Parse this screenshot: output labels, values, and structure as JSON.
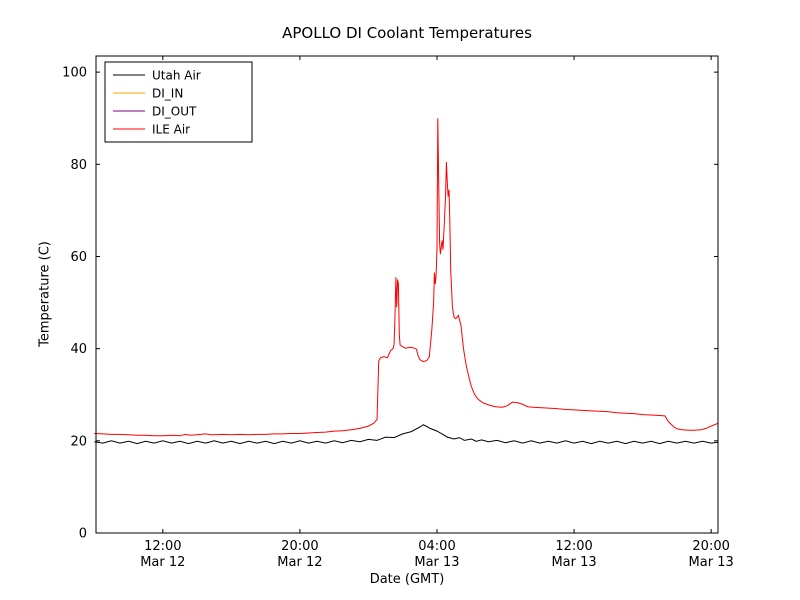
{
  "chart_data": {
    "type": "line",
    "title": "APOLLO DI Coolant Temperatures",
    "xlabel": "Date (GMT)",
    "ylabel": "Temperature (C)",
    "x_unit": "hours since Mar 12 00:00 GMT",
    "xlim": [
      8.1,
      44.4
    ],
    "ylim": [
      0,
      103.5
    ],
    "yticks": [
      0,
      20,
      40,
      60,
      80,
      100
    ],
    "xticks": [
      {
        "x": 12,
        "time": "12:00",
        "date": "Mar 12"
      },
      {
        "x": 20,
        "time": "20:00",
        "date": "Mar 12"
      },
      {
        "x": 28,
        "time": "04:00",
        "date": "Mar 13"
      },
      {
        "x": 36,
        "time": "12:00",
        "date": "Mar 13"
      },
      {
        "x": 44,
        "time": "20:00",
        "date": "Mar 13"
      }
    ],
    "grid": false,
    "legend_position": "upper left",
    "series": [
      {
        "name": "Utah Air",
        "color": "#000000",
        "points": [
          [
            8.0,
            19.8
          ],
          [
            8.5,
            19.5
          ],
          [
            9.0,
            20.0
          ],
          [
            9.5,
            19.5
          ],
          [
            10.0,
            19.9
          ],
          [
            10.5,
            19.4
          ],
          [
            11.0,
            19.9
          ],
          [
            11.5,
            19.5
          ],
          [
            12.0,
            20.0
          ],
          [
            12.5,
            19.5
          ],
          [
            13.0,
            19.9
          ],
          [
            13.5,
            19.4
          ],
          [
            14.0,
            19.9
          ],
          [
            14.5,
            19.5
          ],
          [
            15.0,
            20.0
          ],
          [
            15.5,
            19.5
          ],
          [
            16.0,
            19.9
          ],
          [
            16.5,
            19.4
          ],
          [
            17.0,
            19.9
          ],
          [
            17.5,
            19.5
          ],
          [
            18.0,
            19.9
          ],
          [
            18.5,
            19.4
          ],
          [
            19.0,
            19.9
          ],
          [
            19.5,
            19.5
          ],
          [
            20.0,
            20.0
          ],
          [
            20.5,
            19.5
          ],
          [
            21.0,
            19.9
          ],
          [
            21.5,
            19.5
          ],
          [
            22.0,
            20.0
          ],
          [
            22.5,
            19.6
          ],
          [
            23.0,
            20.1
          ],
          [
            23.5,
            19.8
          ],
          [
            24.0,
            20.3
          ],
          [
            24.5,
            20.1
          ],
          [
            25.0,
            20.8
          ],
          [
            25.5,
            20.7
          ],
          [
            26.0,
            21.5
          ],
          [
            26.5,
            22.0
          ],
          [
            27.0,
            23.0
          ],
          [
            27.2,
            23.5
          ],
          [
            27.4,
            23.1
          ],
          [
            27.6,
            22.7
          ],
          [
            28.0,
            22.1
          ],
          [
            28.3,
            21.5
          ],
          [
            28.6,
            20.8
          ],
          [
            29.0,
            20.4
          ],
          [
            29.3,
            20.7
          ],
          [
            29.6,
            20.1
          ],
          [
            30.0,
            20.4
          ],
          [
            30.3,
            19.9
          ],
          [
            30.6,
            20.2
          ],
          [
            31.0,
            19.8
          ],
          [
            31.5,
            20.1
          ],
          [
            32.0,
            19.6
          ],
          [
            32.5,
            20.0
          ],
          [
            33.0,
            19.5
          ],
          [
            33.5,
            20.0
          ],
          [
            34.0,
            19.5
          ],
          [
            34.5,
            19.9
          ],
          [
            35.0,
            19.5
          ],
          [
            35.5,
            20.0
          ],
          [
            36.0,
            19.5
          ],
          [
            36.5,
            19.9
          ],
          [
            37.0,
            19.4
          ],
          [
            37.5,
            19.9
          ],
          [
            38.0,
            19.5
          ],
          [
            38.5,
            19.9
          ],
          [
            39.0,
            19.4
          ],
          [
            39.5,
            19.9
          ],
          [
            40.0,
            19.5
          ],
          [
            40.5,
            19.9
          ],
          [
            41.0,
            19.4
          ],
          [
            41.5,
            19.9
          ],
          [
            42.0,
            19.5
          ],
          [
            42.5,
            19.9
          ],
          [
            43.0,
            19.5
          ],
          [
            43.5,
            19.9
          ],
          [
            44.0,
            19.5
          ],
          [
            44.4,
            19.7
          ]
        ]
      },
      {
        "name": "DI_IN",
        "color": "#ffa500",
        "points": []
      },
      {
        "name": "DI_OUT",
        "color": "#800080",
        "points": []
      },
      {
        "name": "ILE Air",
        "color": "#ff0000",
        "points": [
          [
            8.0,
            21.6
          ],
          [
            8.5,
            21.5
          ],
          [
            9.0,
            21.4
          ],
          [
            9.5,
            21.4
          ],
          [
            10.0,
            21.3
          ],
          [
            10.5,
            21.2
          ],
          [
            11.0,
            21.2
          ],
          [
            11.5,
            21.1
          ],
          [
            12.0,
            21.1
          ],
          [
            12.5,
            21.2
          ],
          [
            13.0,
            21.1
          ],
          [
            13.3,
            21.4
          ],
          [
            13.6,
            21.2
          ],
          [
            14.0,
            21.3
          ],
          [
            14.5,
            21.5
          ],
          [
            14.8,
            21.3
          ],
          [
            15.0,
            21.3
          ],
          [
            15.5,
            21.4
          ],
          [
            16.0,
            21.3
          ],
          [
            16.5,
            21.4
          ],
          [
            17.0,
            21.3
          ],
          [
            17.5,
            21.4
          ],
          [
            18.0,
            21.4
          ],
          [
            18.5,
            21.5
          ],
          [
            19.0,
            21.5
          ],
          [
            19.5,
            21.6
          ],
          [
            20.0,
            21.6
          ],
          [
            20.5,
            21.7
          ],
          [
            21.0,
            21.8
          ],
          [
            21.5,
            21.9
          ],
          [
            22.0,
            22.1
          ],
          [
            22.5,
            22.2
          ],
          [
            23.0,
            22.4
          ],
          [
            23.5,
            22.7
          ],
          [
            24.0,
            23.2
          ],
          [
            24.3,
            23.8
          ],
          [
            24.5,
            24.6
          ],
          [
            24.55,
            31.0
          ],
          [
            24.6,
            37.3
          ],
          [
            24.7,
            38.0
          ],
          [
            24.9,
            38.3
          ],
          [
            25.1,
            38.0
          ],
          [
            25.3,
            39.6
          ],
          [
            25.45,
            40.1
          ],
          [
            25.5,
            41.0
          ],
          [
            25.55,
            47.0
          ],
          [
            25.6,
            55.5
          ],
          [
            25.65,
            49.0
          ],
          [
            25.7,
            55.0
          ],
          [
            25.75,
            54.0
          ],
          [
            25.8,
            43.0
          ],
          [
            25.85,
            40.8
          ],
          [
            26.0,
            40.4
          ],
          [
            26.2,
            40.1
          ],
          [
            26.4,
            40.3
          ],
          [
            26.6,
            40.2
          ],
          [
            26.8,
            39.9
          ],
          [
            26.9,
            38.5
          ],
          [
            27.0,
            37.6
          ],
          [
            27.2,
            37.2
          ],
          [
            27.4,
            37.4
          ],
          [
            27.55,
            38.2
          ],
          [
            27.7,
            44.0
          ],
          [
            27.8,
            50.0
          ],
          [
            27.85,
            56.5
          ],
          [
            27.9,
            54.0
          ],
          [
            27.95,
            56.0
          ],
          [
            28.0,
            62.0
          ],
          [
            28.05,
            90.0
          ],
          [
            28.1,
            76.0
          ],
          [
            28.15,
            63.0
          ],
          [
            28.2,
            60.5
          ],
          [
            28.3,
            63.5
          ],
          [
            28.35,
            61.5
          ],
          [
            28.45,
            69.0
          ],
          [
            28.5,
            73.5
          ],
          [
            28.55,
            80.5
          ],
          [
            28.6,
            76.0
          ],
          [
            28.65,
            73.0
          ],
          [
            28.7,
            74.5
          ],
          [
            28.75,
            68.0
          ],
          [
            28.8,
            57.0
          ],
          [
            28.9,
            49.0
          ],
          [
            29.0,
            46.8
          ],
          [
            29.1,
            46.5
          ],
          [
            29.25,
            47.2
          ],
          [
            29.4,
            45.0
          ],
          [
            29.55,
            40.0
          ],
          [
            29.7,
            36.5
          ],
          [
            29.85,
            34.0
          ],
          [
            30.0,
            31.8
          ],
          [
            30.2,
            30.0
          ],
          [
            30.4,
            29.0
          ],
          [
            30.7,
            28.2
          ],
          [
            31.0,
            27.8
          ],
          [
            31.4,
            27.4
          ],
          [
            31.8,
            27.3
          ],
          [
            32.1,
            27.6
          ],
          [
            32.4,
            28.4
          ],
          [
            32.7,
            28.3
          ],
          [
            33.0,
            27.9
          ],
          [
            33.3,
            27.4
          ],
          [
            33.6,
            27.3
          ],
          [
            34.0,
            27.2
          ],
          [
            34.5,
            27.1
          ],
          [
            35.0,
            27.0
          ],
          [
            35.5,
            26.8
          ],
          [
            36.0,
            26.7
          ],
          [
            36.5,
            26.6
          ],
          [
            37.0,
            26.5
          ],
          [
            37.5,
            26.4
          ],
          [
            38.0,
            26.3
          ],
          [
            38.5,
            26.1
          ],
          [
            39.0,
            26.0
          ],
          [
            39.5,
            25.9
          ],
          [
            40.0,
            25.7
          ],
          [
            40.5,
            25.6
          ],
          [
            41.0,
            25.5
          ],
          [
            41.3,
            25.4
          ],
          [
            41.5,
            24.2
          ],
          [
            41.8,
            23.1
          ],
          [
            42.0,
            22.6
          ],
          [
            42.3,
            22.4
          ],
          [
            42.7,
            22.3
          ],
          [
            43.0,
            22.3
          ],
          [
            43.4,
            22.4
          ],
          [
            43.7,
            22.7
          ],
          [
            44.0,
            23.2
          ],
          [
            44.4,
            23.8
          ]
        ]
      }
    ],
    "colors": {
      "axes": "#000000",
      "background": "#ffffff",
      "legend_border": "#000000"
    }
  }
}
